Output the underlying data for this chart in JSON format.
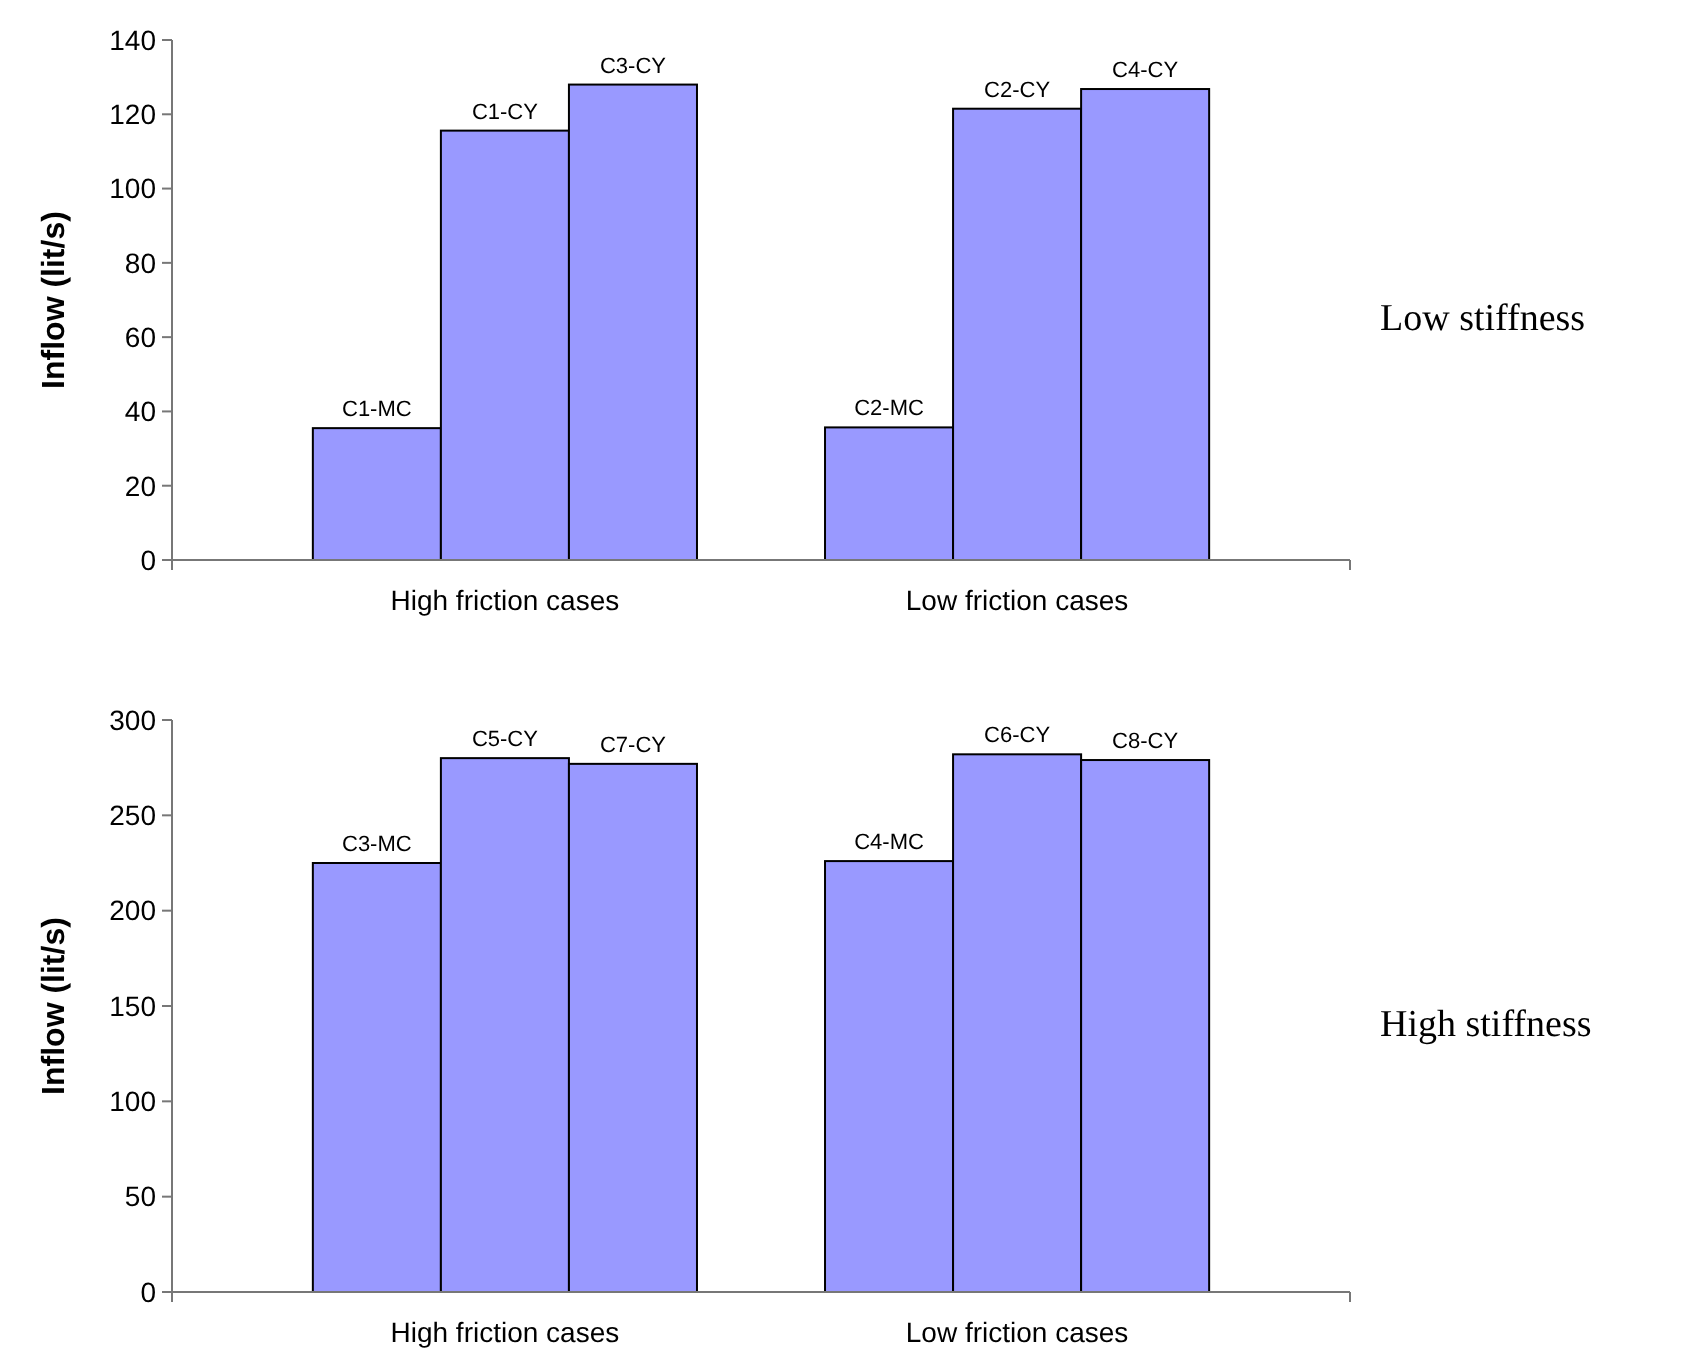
{
  "chart_data": [
    {
      "type": "bar",
      "ylabel": "Inflow (lit/s)",
      "categories": [
        "High friction cases",
        "Low friction cases"
      ],
      "series": [
        {
          "color": "#9999ff",
          "values": [
            35.5,
            35.7
          ],
          "value_labels": [
            "C1-MC",
            "C2-MC"
          ]
        },
        {
          "color": "#9999ff",
          "values": [
            115.6,
            121.5
          ],
          "value_labels": [
            "C1-CY",
            "C2-CY"
          ]
        },
        {
          "color": "#9999ff",
          "values": [
            128,
            126.8
          ],
          "value_labels": [
            "C3-CY",
            "C4-CY"
          ]
        }
      ],
      "ylim": [
        0,
        140
      ],
      "yticks": [
        0,
        20,
        40,
        60,
        80,
        100,
        120,
        140
      ],
      "grid": false,
      "annotations": [
        "Low stiffness"
      ]
    },
    {
      "type": "bar",
      "ylabel": "Inflow (lit/s)",
      "categories": [
        "High friction cases",
        "Low friction cases"
      ],
      "series": [
        {
          "color": "#9999ff",
          "values": [
            225,
            226
          ],
          "value_labels": [
            "C3-MC",
            "C4-MC"
          ]
        },
        {
          "color": "#9999ff",
          "values": [
            280,
            282
          ],
          "value_labels": [
            "C5-CY",
            "C6-CY"
          ]
        },
        {
          "color": "#9999ff",
          "values": [
            277,
            279
          ],
          "value_labels": [
            "C7-CY",
            "C8-CY"
          ]
        }
      ],
      "ylim": [
        0,
        300
      ],
      "yticks": [
        0,
        50,
        100,
        150,
        200,
        250,
        300
      ],
      "grid": false,
      "annotations": [
        "High stiffness"
      ]
    }
  ]
}
